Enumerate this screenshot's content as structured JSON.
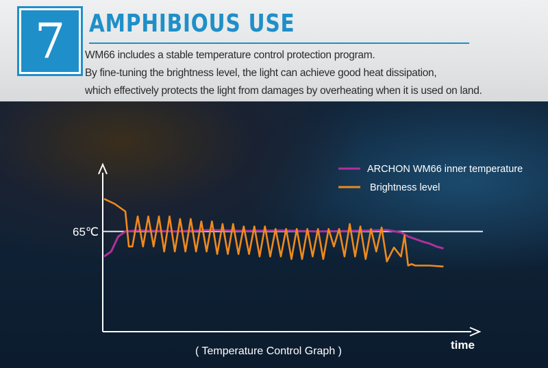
{
  "header": {
    "number": "7",
    "title": "AMPHIBIOUS USE",
    "lines": [
      "WM66 includes a stable temperature control protection program.",
      "By fine-tuning the brightness level, the light can achieve good heat dissipation,",
      "which effectively protects the light from damages by overheating when it is used on land."
    ]
  },
  "colors": {
    "accent": "#1f8fc9",
    "temperature": "#b0309e",
    "brightness": "#f08a1c",
    "axis": "#ffffff"
  },
  "chart_data": {
    "type": "line",
    "title": "",
    "caption": "( Temperature Control Graph )",
    "xlabel": "time",
    "ylabel": "",
    "y_tick_label": "65℃",
    "y_reference": 65,
    "ylim": [
      45,
      77
    ],
    "xlim": [
      0,
      100
    ],
    "grid": false,
    "legend_position": "top-right",
    "series": [
      {
        "name": "ARCHON WM66 inner temperature",
        "color": "#b0309e",
        "x": [
          0,
          2,
          4,
          6,
          10,
          20,
          30,
          40,
          50,
          60,
          70,
          76,
          80,
          84,
          86,
          88,
          90,
          92,
          94,
          96
        ],
        "y": [
          60,
          61,
          64,
          65,
          65.2,
          65,
          65.3,
          65.1,
          65.2,
          65,
          65.1,
          65.2,
          65.3,
          64.8,
          64,
          63.5,
          63,
          62.6,
          62,
          61.6
        ]
      },
      {
        "name": "Brightness level",
        "color": "#f08a1c",
        "x": [
          0,
          3,
          6,
          7,
          8,
          9.5,
          11,
          12.5,
          14,
          15.5,
          17,
          18.5,
          20,
          21.5,
          23,
          24.5,
          26,
          27.5,
          29,
          30.5,
          32,
          33.5,
          35,
          36.5,
          38,
          39.5,
          41,
          42.5,
          44,
          45.5,
          47,
          48.5,
          50,
          51.5,
          53,
          54.5,
          56,
          57.5,
          59,
          60.5,
          62,
          63.5,
          65,
          66.5,
          68,
          69.5,
          71,
          72.5,
          74,
          75.5,
          77,
          78.5,
          80,
          82,
          84,
          85,
          86,
          87,
          88,
          92,
          96
        ],
        "y": [
          71.5,
          70.5,
          69,
          62,
          62,
          68,
          62,
          68,
          62,
          68,
          61,
          68,
          61,
          67.5,
          61,
          67.5,
          61,
          67,
          61,
          67,
          60.5,
          66.5,
          60.5,
          66.5,
          60.5,
          66,
          60.5,
          66,
          60,
          66,
          60,
          65.5,
          60,
          65.5,
          59.5,
          65.5,
          59.5,
          65.5,
          60,
          65.5,
          59.5,
          65.5,
          62,
          65.5,
          60,
          66.5,
          60,
          66,
          59.5,
          65.5,
          61,
          65.8,
          59,
          61.8,
          60,
          64.2,
          58.2,
          58.5,
          58.2,
          58.2,
          58
        ]
      }
    ]
  }
}
